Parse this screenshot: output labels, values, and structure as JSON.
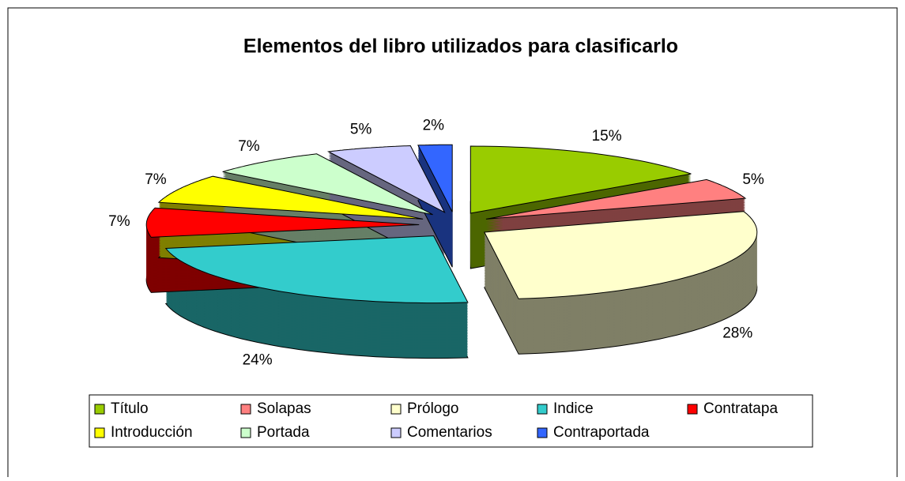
{
  "chart_data": {
    "type": "pie3d",
    "title": "Elementos del libro utilizados para clasificarlo",
    "categories": [
      "Título",
      "Solapas",
      "Prólogo",
      "Indice",
      "Contratapa",
      "Introducción",
      "Portada",
      "Comentarios",
      "Contraportada"
    ],
    "values": [
      15,
      5,
      28,
      24,
      7,
      7,
      7,
      5,
      2
    ],
    "value_labels": [
      "15%",
      "5%",
      "28%",
      "24%",
      "7%",
      "7%",
      "7%",
      "5%",
      "2%"
    ],
    "colors": [
      "#99cc00",
      "#ff8080",
      "#ffffcc",
      "#33cccc",
      "#ff0000",
      "#ffff00",
      "#ccffcc",
      "#ccccff",
      "#3366ff"
    ],
    "legend": "bottom"
  }
}
